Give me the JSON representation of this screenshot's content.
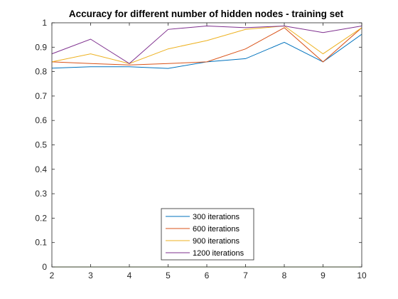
{
  "chart_data": {
    "type": "line",
    "title": "Accuracy for different number of hidden nodes - training set",
    "xlabel": "",
    "ylabel": "",
    "x": [
      2,
      3,
      4,
      5,
      6,
      7,
      8,
      9,
      10
    ],
    "xlim": [
      2,
      10
    ],
    "ylim": [
      0,
      1
    ],
    "xticks": [
      "2",
      "3",
      "4",
      "5",
      "6",
      "7",
      "8",
      "9",
      "10"
    ],
    "yticks": [
      "0",
      "0.1",
      "0.2",
      "0.3",
      "0.4",
      "0.5",
      "0.6",
      "0.7",
      "0.8",
      "0.9",
      "1"
    ],
    "grid": false,
    "legend_placement": "bottom-center",
    "series": [
      {
        "name": "300 iterations",
        "color": "#0072BD",
        "values": [
          0.814,
          0.82,
          0.82,
          0.813,
          0.84,
          0.853,
          0.92,
          0.84,
          0.953
        ]
      },
      {
        "name": "600 iterations",
        "color": "#D95319",
        "values": [
          0.84,
          0.833,
          0.827,
          0.833,
          0.84,
          0.893,
          0.98,
          0.84,
          0.98
        ]
      },
      {
        "name": "900 iterations",
        "color": "#EDB120",
        "values": [
          0.84,
          0.873,
          0.833,
          0.893,
          0.927,
          0.973,
          0.987,
          0.873,
          0.98
        ]
      },
      {
        "name": "1200 iterations",
        "color": "#7E2F8E",
        "values": [
          0.873,
          0.933,
          0.833,
          0.973,
          0.987,
          0.98,
          0.987,
          0.96,
          0.987
        ]
      }
    ],
    "baseline": {
      "color": "#77AC30",
      "value": 0
    }
  }
}
